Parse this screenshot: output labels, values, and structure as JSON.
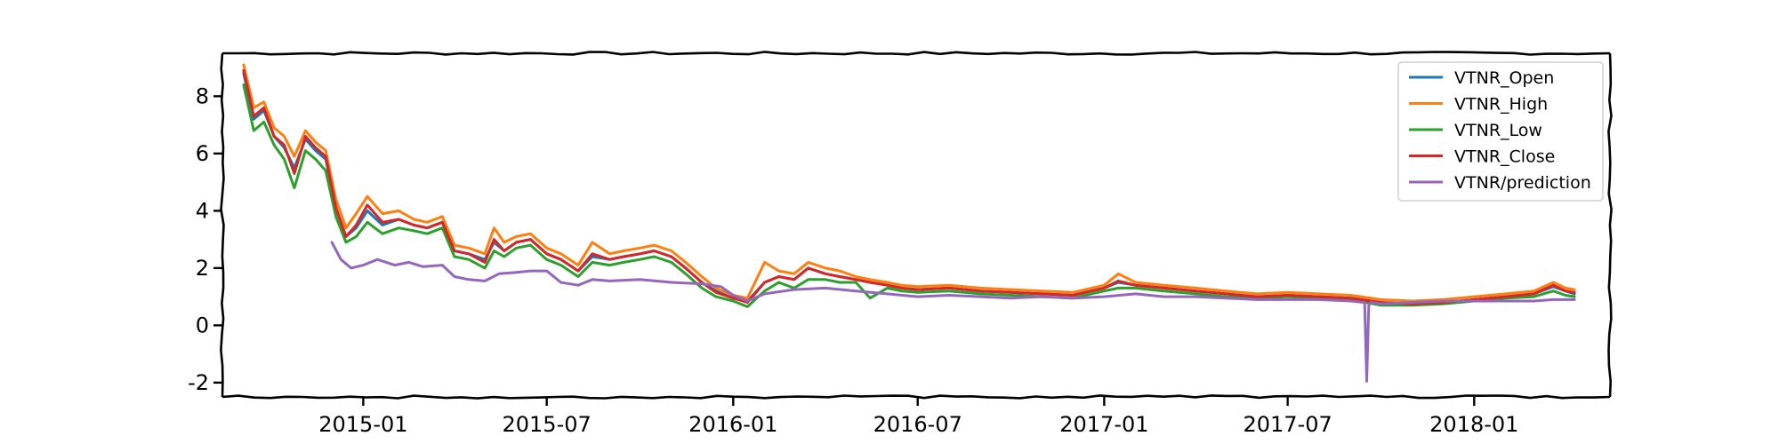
{
  "chart_data": {
    "type": "line",
    "title": "",
    "xlabel": "",
    "ylabel": "",
    "ylim": [
      -2.5,
      9.5
    ],
    "yticks": [
      -2,
      0,
      2,
      4,
      6,
      8
    ],
    "ytick_labels": [
      "-2",
      "0",
      "2",
      "4",
      "6",
      "8"
    ],
    "xlim": [
      "2014-08-15",
      "2018-05-15"
    ],
    "xticks": [
      "2015-01-01",
      "2015-07-01",
      "2016-01-01",
      "2016-07-01",
      "2017-01-01",
      "2017-07-01",
      "2018-01-01"
    ],
    "xtick_labels": [
      "2015-01",
      "2015-07",
      "2016-01",
      "2016-07",
      "2017-01",
      "2017-07",
      "2018-01"
    ],
    "grid": false,
    "legend_position": "top-right",
    "colors": {
      "VTNR_Open": "#1f77b4",
      "VTNR_High": "#ff7f0e",
      "VTNR_Low": "#2ca02c",
      "VTNR_Close": "#d62728",
      "VTNR/prediction": "#9467bd"
    },
    "series": [
      {
        "name": "VTNR_Open",
        "x": [
          "2014-09-05",
          "2014-09-15",
          "2014-09-25",
          "2014-10-05",
          "2014-10-15",
          "2014-10-25",
          "2014-11-05",
          "2014-11-15",
          "2014-11-25",
          "2014-12-05",
          "2014-12-15",
          "2014-12-25",
          "2015-01-05",
          "2015-01-20",
          "2015-02-05",
          "2015-02-20",
          "2015-03-05",
          "2015-03-20",
          "2015-04-01",
          "2015-04-15",
          "2015-05-01",
          "2015-05-10",
          "2015-05-20",
          "2015-06-01",
          "2015-06-15",
          "2015-07-01",
          "2015-07-15",
          "2015-08-01",
          "2015-08-15",
          "2015-09-01",
          "2015-09-15",
          "2015-10-01",
          "2015-10-15",
          "2015-11-01",
          "2015-11-15",
          "2015-12-01",
          "2015-12-15",
          "2016-01-01",
          "2016-01-15",
          "2016-02-01",
          "2016-02-15",
          "2016-03-01",
          "2016-03-15",
          "2016-04-01",
          "2016-04-15",
          "2016-05-01",
          "2016-05-15",
          "2016-06-01",
          "2016-06-15",
          "2016-07-01",
          "2016-08-01",
          "2016-09-01",
          "2016-10-01",
          "2016-11-01",
          "2016-12-01",
          "2017-01-01",
          "2017-01-15",
          "2017-02-01",
          "2017-03-01",
          "2017-04-01",
          "2017-05-01",
          "2017-06-01",
          "2017-07-01",
          "2017-08-01",
          "2017-09-01",
          "2017-10-01",
          "2017-11-01",
          "2017-12-01",
          "2018-01-01",
          "2018-02-01",
          "2018-03-01",
          "2018-03-20",
          "2018-04-01",
          "2018-04-10"
        ],
        "values": [
          8.8,
          7.2,
          7.5,
          6.6,
          6.2,
          5.5,
          6.5,
          6.1,
          5.8,
          4.1,
          3.1,
          3.4,
          4.0,
          3.5,
          3.7,
          3.5,
          3.4,
          3.6,
          2.6,
          2.5,
          2.3,
          2.9,
          2.6,
          2.9,
          3.0,
          2.5,
          2.3,
          1.9,
          2.4,
          2.3,
          2.4,
          2.5,
          2.6,
          2.4,
          2.0,
          1.5,
          1.2,
          0.95,
          0.85,
          1.5,
          1.7,
          1.6,
          2.0,
          1.8,
          1.7,
          1.6,
          1.5,
          1.4,
          1.3,
          1.25,
          1.3,
          1.2,
          1.15,
          1.1,
          1.05,
          1.3,
          1.5,
          1.4,
          1.3,
          1.2,
          1.1,
          1.0,
          1.05,
          1.0,
          0.95,
          0.8,
          0.75,
          0.8,
          0.9,
          1.0,
          1.1,
          1.35,
          1.2,
          1.1
        ]
      },
      {
        "name": "VTNR_High",
        "x": [
          "2014-09-05",
          "2014-09-15",
          "2014-09-25",
          "2014-10-05",
          "2014-10-15",
          "2014-10-25",
          "2014-11-05",
          "2014-11-15",
          "2014-11-25",
          "2014-12-05",
          "2014-12-15",
          "2014-12-25",
          "2015-01-05",
          "2015-01-20",
          "2015-02-05",
          "2015-02-20",
          "2015-03-05",
          "2015-03-20",
          "2015-04-01",
          "2015-04-15",
          "2015-05-01",
          "2015-05-10",
          "2015-05-20",
          "2015-06-01",
          "2015-06-15",
          "2015-07-01",
          "2015-07-15",
          "2015-08-01",
          "2015-08-15",
          "2015-09-01",
          "2015-09-15",
          "2015-10-01",
          "2015-10-15",
          "2015-11-01",
          "2015-11-15",
          "2015-12-01",
          "2015-12-15",
          "2016-01-01",
          "2016-01-15",
          "2016-02-01",
          "2016-02-15",
          "2016-03-01",
          "2016-03-15",
          "2016-04-01",
          "2016-04-15",
          "2016-05-01",
          "2016-05-15",
          "2016-06-01",
          "2016-06-15",
          "2016-07-01",
          "2016-08-01",
          "2016-09-01",
          "2016-10-01",
          "2016-11-01",
          "2016-12-01",
          "2017-01-01",
          "2017-01-15",
          "2017-02-01",
          "2017-03-01",
          "2017-04-01",
          "2017-05-01",
          "2017-06-01",
          "2017-07-01",
          "2017-08-01",
          "2017-09-01",
          "2017-10-01",
          "2017-11-01",
          "2017-12-01",
          "2018-01-01",
          "2018-02-01",
          "2018-03-01",
          "2018-03-20",
          "2018-04-01",
          "2018-04-10"
        ],
        "values": [
          9.1,
          7.6,
          7.8,
          6.9,
          6.6,
          5.9,
          6.8,
          6.4,
          6.1,
          4.4,
          3.4,
          3.9,
          4.5,
          3.9,
          4.0,
          3.7,
          3.6,
          3.8,
          2.8,
          2.7,
          2.5,
          3.4,
          2.9,
          3.1,
          3.2,
          2.7,
          2.5,
          2.1,
          2.9,
          2.5,
          2.6,
          2.7,
          2.8,
          2.6,
          2.2,
          1.7,
          1.3,
          1.05,
          0.95,
          2.2,
          1.9,
          1.8,
          2.2,
          2.0,
          1.9,
          1.7,
          1.6,
          1.5,
          1.4,
          1.35,
          1.4,
          1.3,
          1.25,
          1.2,
          1.15,
          1.4,
          1.8,
          1.5,
          1.4,
          1.3,
          1.2,
          1.1,
          1.15,
          1.1,
          1.05,
          0.9,
          0.85,
          0.9,
          1.0,
          1.1,
          1.2,
          1.5,
          1.3,
          1.25
        ]
      },
      {
        "name": "VTNR_Low",
        "x": [
          "2014-09-05",
          "2014-09-15",
          "2014-09-25",
          "2014-10-05",
          "2014-10-15",
          "2014-10-25",
          "2014-11-05",
          "2014-11-15",
          "2014-11-25",
          "2014-12-05",
          "2014-12-15",
          "2014-12-25",
          "2015-01-05",
          "2015-01-20",
          "2015-02-05",
          "2015-02-20",
          "2015-03-05",
          "2015-03-20",
          "2015-04-01",
          "2015-04-15",
          "2015-05-01",
          "2015-05-10",
          "2015-05-20",
          "2015-06-01",
          "2015-06-15",
          "2015-07-01",
          "2015-07-15",
          "2015-08-01",
          "2015-08-15",
          "2015-09-01",
          "2015-09-15",
          "2015-10-01",
          "2015-10-15",
          "2015-11-01",
          "2015-11-15",
          "2015-12-01",
          "2015-12-15",
          "2016-01-01",
          "2016-01-15",
          "2016-02-01",
          "2016-02-15",
          "2016-03-01",
          "2016-03-15",
          "2016-04-01",
          "2016-04-15",
          "2016-05-01",
          "2016-05-15",
          "2016-06-01",
          "2016-06-15",
          "2016-07-01",
          "2016-08-01",
          "2016-09-01",
          "2016-10-01",
          "2016-11-01",
          "2016-12-01",
          "2017-01-01",
          "2017-01-15",
          "2017-02-01",
          "2017-03-01",
          "2017-04-01",
          "2017-05-01",
          "2017-06-01",
          "2017-07-01",
          "2017-08-01",
          "2017-09-01",
          "2017-10-01",
          "2017-11-01",
          "2017-12-01",
          "2018-01-01",
          "2018-02-01",
          "2018-03-01",
          "2018-03-20",
          "2018-04-01",
          "2018-04-10"
        ],
        "values": [
          8.4,
          6.8,
          7.1,
          6.3,
          5.8,
          4.8,
          6.1,
          5.8,
          5.4,
          3.8,
          2.9,
          3.1,
          3.6,
          3.2,
          3.4,
          3.3,
          3.2,
          3.4,
          2.4,
          2.3,
          2.0,
          2.6,
          2.4,
          2.7,
          2.8,
          2.3,
          2.1,
          1.7,
          2.2,
          2.1,
          2.2,
          2.3,
          2.4,
          2.2,
          1.8,
          1.3,
          1.0,
          0.85,
          0.65,
          1.2,
          1.5,
          1.3,
          1.6,
          1.6,
          1.5,
          1.5,
          0.95,
          1.3,
          1.2,
          1.15,
          1.2,
          1.1,
          1.05,
          1.0,
          0.95,
          1.2,
          1.3,
          1.3,
          1.2,
          1.1,
          1.0,
          0.95,
          1.0,
          0.95,
          0.9,
          0.7,
          0.7,
          0.75,
          0.85,
          0.95,
          1.0,
          1.2,
          1.05,
          1.0
        ]
      },
      {
        "name": "VTNR_Close",
        "x": [
          "2014-09-05",
          "2014-09-15",
          "2014-09-25",
          "2014-10-05",
          "2014-10-15",
          "2014-10-25",
          "2014-11-05",
          "2014-11-15",
          "2014-11-25",
          "2014-12-05",
          "2014-12-15",
          "2014-12-25",
          "2015-01-05",
          "2015-01-20",
          "2015-02-05",
          "2015-02-20",
          "2015-03-05",
          "2015-03-20",
          "2015-04-01",
          "2015-04-15",
          "2015-05-01",
          "2015-05-10",
          "2015-05-20",
          "2015-06-01",
          "2015-06-15",
          "2015-07-01",
          "2015-07-15",
          "2015-08-01",
          "2015-08-15",
          "2015-09-01",
          "2015-09-15",
          "2015-10-01",
          "2015-10-15",
          "2015-11-01",
          "2015-11-15",
          "2015-12-01",
          "2015-12-15",
          "2016-01-01",
          "2016-01-15",
          "2016-02-01",
          "2016-02-15",
          "2016-03-01",
          "2016-03-15",
          "2016-04-01",
          "2016-04-15",
          "2016-05-01",
          "2016-05-15",
          "2016-06-01",
          "2016-06-15",
          "2016-07-01",
          "2016-08-01",
          "2016-09-01",
          "2016-10-01",
          "2016-11-01",
          "2016-12-01",
          "2017-01-01",
          "2017-01-15",
          "2017-02-01",
          "2017-03-01",
          "2017-04-01",
          "2017-05-01",
          "2017-06-01",
          "2017-07-01",
          "2017-08-01",
          "2017-09-01",
          "2017-10-01",
          "2017-11-01",
          "2017-12-01",
          "2018-01-01",
          "2018-02-01",
          "2018-03-01",
          "2018-03-20",
          "2018-04-01",
          "2018-04-10"
        ],
        "values": [
          8.9,
          7.3,
          7.6,
          6.6,
          6.3,
          5.3,
          6.6,
          6.2,
          5.9,
          4.1,
          3.1,
          3.5,
          4.2,
          3.6,
          3.7,
          3.5,
          3.4,
          3.6,
          2.6,
          2.5,
          2.2,
          3.0,
          2.6,
          2.9,
          3.0,
          2.5,
          2.3,
          1.9,
          2.5,
          2.3,
          2.4,
          2.5,
          2.6,
          2.4,
          2.0,
          1.5,
          1.15,
          0.95,
          0.8,
          1.5,
          1.7,
          1.6,
          2.0,
          1.8,
          1.7,
          1.6,
          1.5,
          1.4,
          1.3,
          1.25,
          1.3,
          1.2,
          1.15,
          1.1,
          1.05,
          1.3,
          1.55,
          1.4,
          1.3,
          1.2,
          1.1,
          1.0,
          1.05,
          1.0,
          0.95,
          0.8,
          0.75,
          0.8,
          0.9,
          1.0,
          1.1,
          1.4,
          1.2,
          1.15
        ]
      },
      {
        "name": "VTNR/prediction",
        "x": [
          "2014-12-01",
          "2014-12-10",
          "2014-12-20",
          "2015-01-01",
          "2015-01-15",
          "2015-02-01",
          "2015-02-15",
          "2015-03-01",
          "2015-03-20",
          "2015-04-01",
          "2015-04-15",
          "2015-05-01",
          "2015-05-15",
          "2015-06-01",
          "2015-06-15",
          "2015-07-01",
          "2015-07-15",
          "2015-08-01",
          "2015-08-15",
          "2015-09-01",
          "2015-10-01",
          "2015-11-01",
          "2015-12-01",
          "2015-12-20",
          "2016-01-01",
          "2016-01-15",
          "2016-02-01",
          "2016-03-01",
          "2016-04-01",
          "2016-05-01",
          "2016-06-01",
          "2016-07-01",
          "2016-08-01",
          "2016-09-01",
          "2016-10-01",
          "2016-11-01",
          "2016-12-01",
          "2017-01-01",
          "2017-02-01",
          "2017-03-01",
          "2017-04-01",
          "2017-05-01",
          "2017-06-01",
          "2017-07-01",
          "2017-08-01",
          "2017-09-01",
          "2017-09-15",
          "2017-09-17",
          "2017-09-19",
          "2017-09-21",
          "2017-10-01",
          "2017-11-01",
          "2017-12-01",
          "2018-01-01",
          "2018-02-01",
          "2018-03-01",
          "2018-03-20",
          "2018-04-01",
          "2018-04-10"
        ],
        "values": [
          2.9,
          2.3,
          2.0,
          2.1,
          2.3,
          2.1,
          2.2,
          2.05,
          2.1,
          1.7,
          1.6,
          1.55,
          1.8,
          1.85,
          1.9,
          1.9,
          1.5,
          1.4,
          1.6,
          1.55,
          1.6,
          1.5,
          1.45,
          1.35,
          1.05,
          0.85,
          1.1,
          1.25,
          1.3,
          1.2,
          1.1,
          1.0,
          1.05,
          1.0,
          0.95,
          1.0,
          0.95,
          1.0,
          1.1,
          1.0,
          1.0,
          0.95,
          0.9,
          0.9,
          0.9,
          0.85,
          0.8,
          -1.95,
          0.7,
          0.8,
          0.75,
          0.8,
          0.85,
          0.85,
          0.85,
          0.85,
          0.9,
          0.9,
          0.9
        ]
      }
    ]
  }
}
